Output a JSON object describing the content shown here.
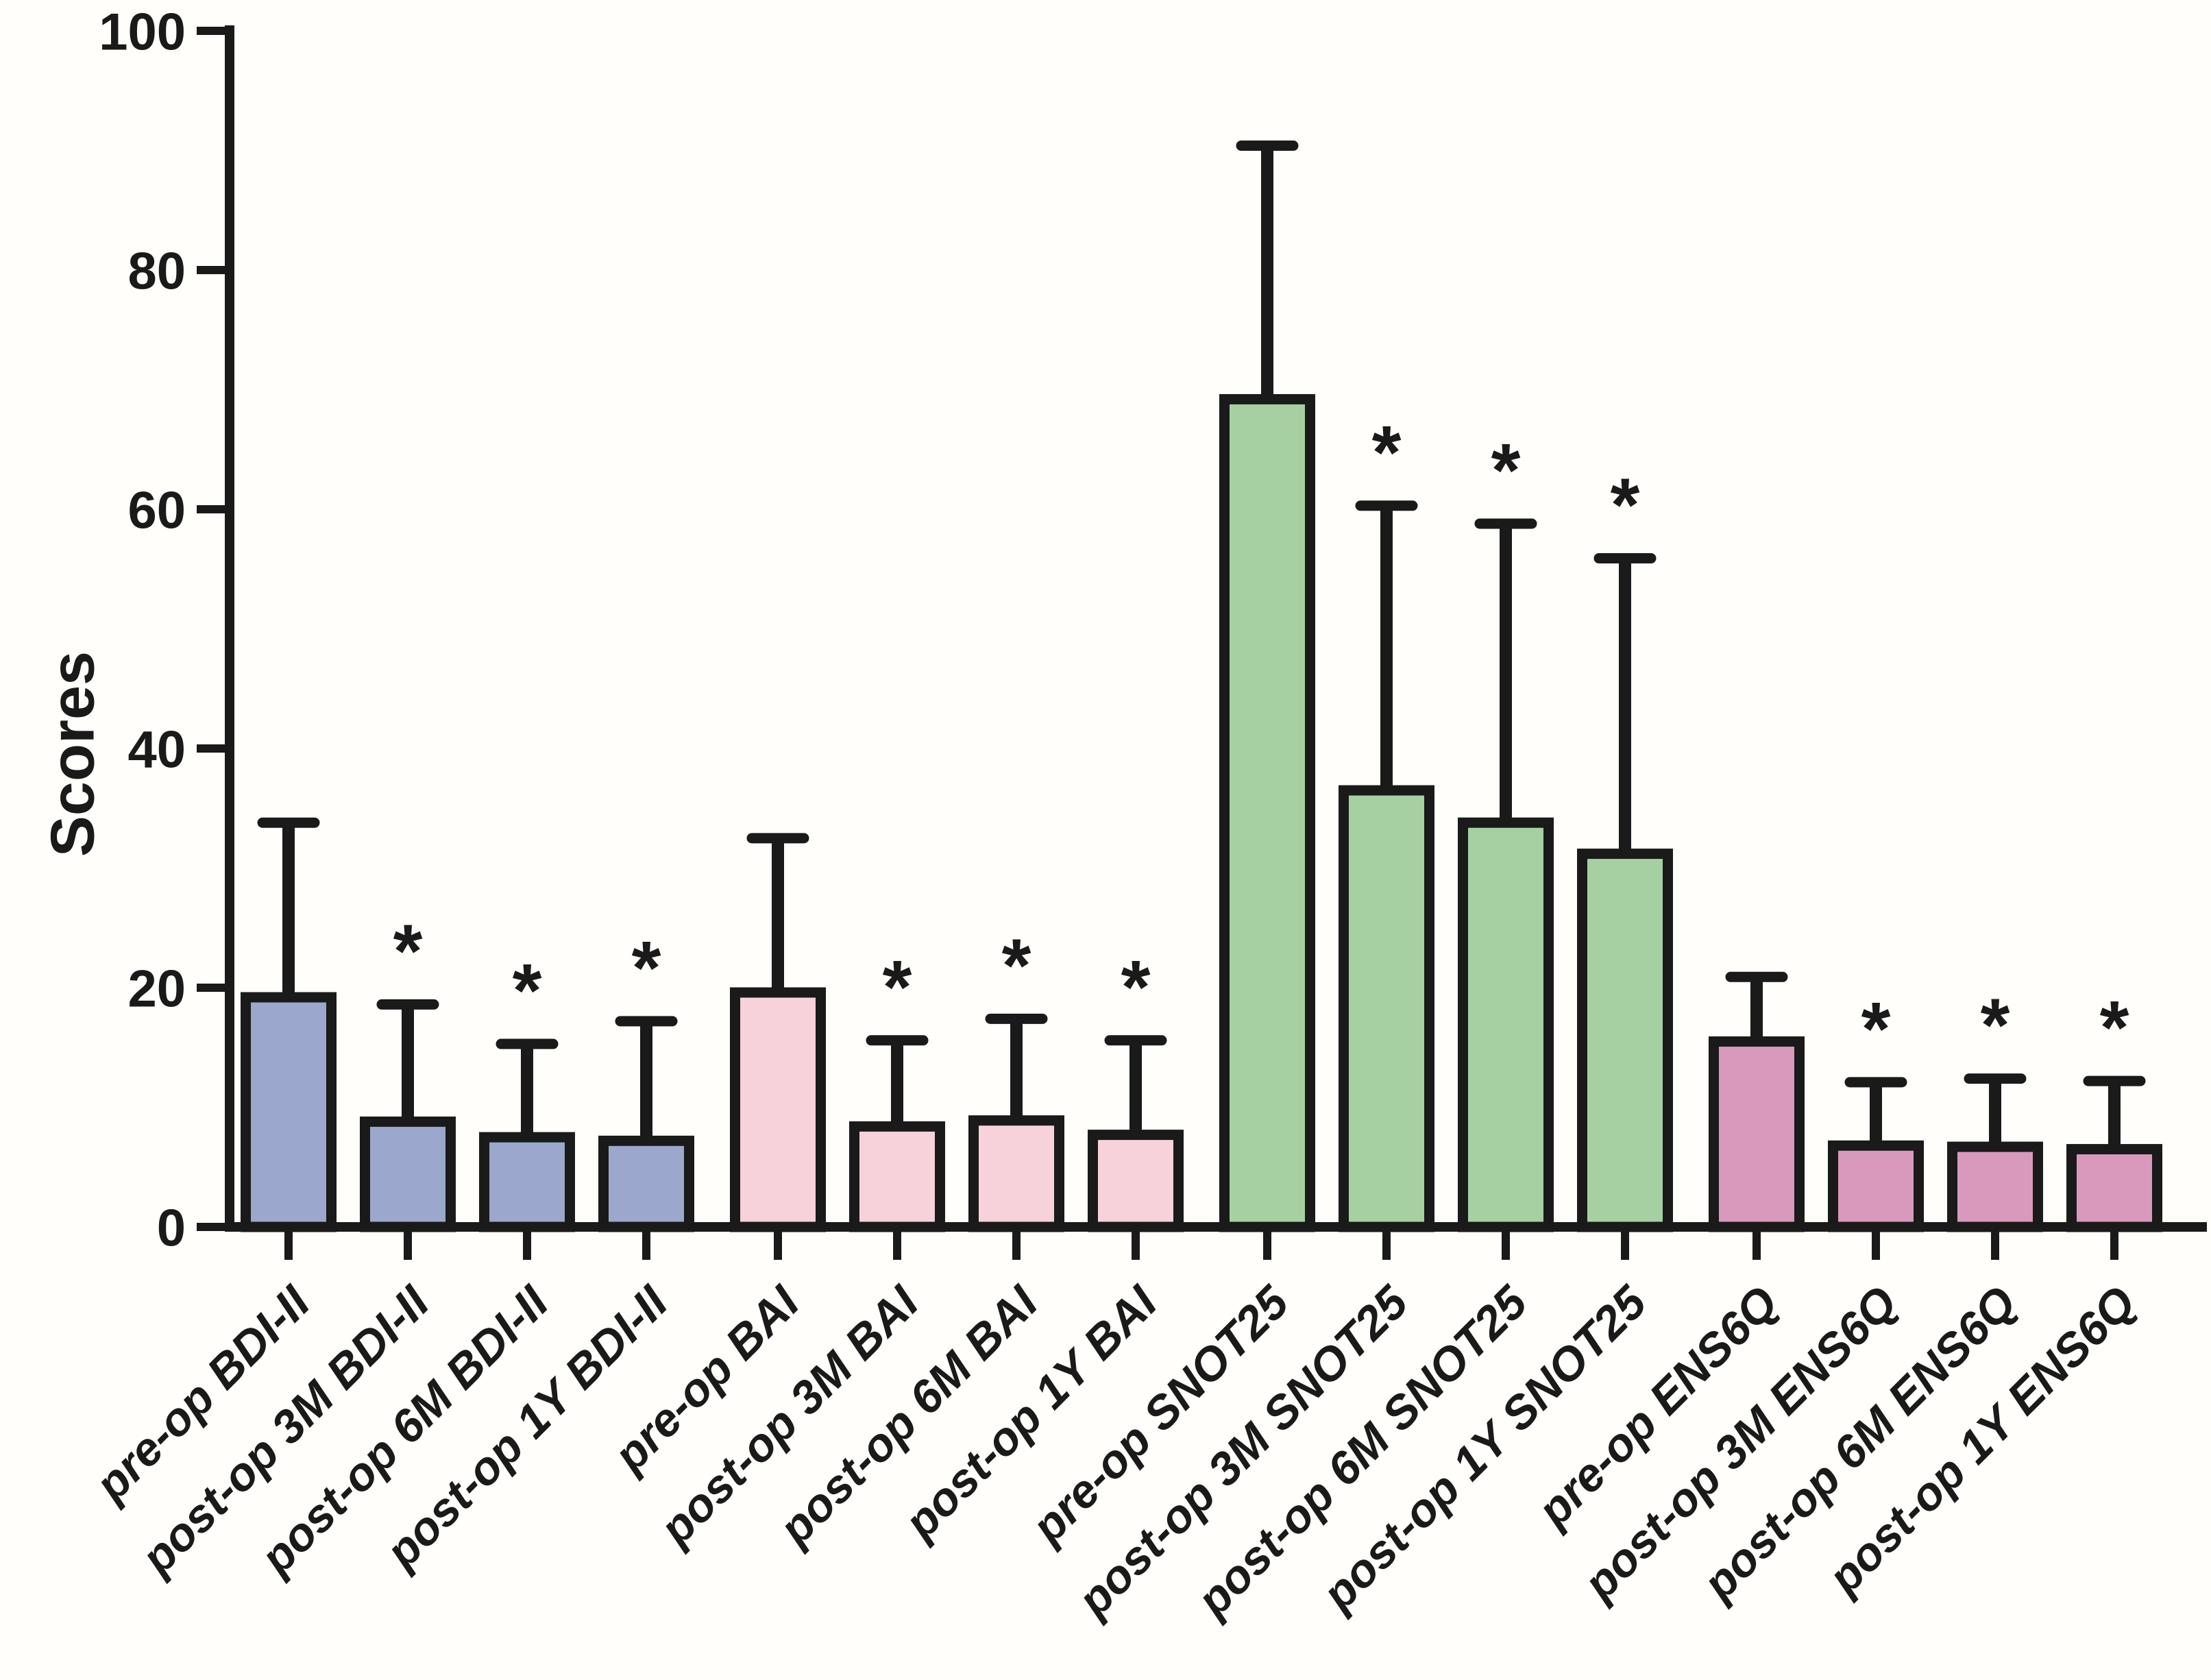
{
  "figure": {
    "background": "#fffefa",
    "ink": "#1a1a1a"
  },
  "chart_data": {
    "type": "bar",
    "title": "",
    "xlabel": "",
    "ylabel": "Scores",
    "ylim": [
      0,
      100
    ],
    "yticks": [
      0,
      20,
      40,
      60,
      80,
      100
    ],
    "grid": false,
    "legend_position": "none",
    "error_bars": "upper SD whisker",
    "significance_marker": "*",
    "groups": [
      {
        "name": "BDI-II",
        "fill": "#9ba7cd",
        "bars": [
          {
            "category": "pre-op BDI-II",
            "value": 19.2,
            "error_top": 33.8,
            "significant": false
          },
          {
            "category": "post-op 3M BDI-II",
            "value": 8.8,
            "error_top": 18.6,
            "significant": true
          },
          {
            "category": "post-op 6M BDI-II",
            "value": 7.5,
            "error_top": 15.3,
            "significant": true
          },
          {
            "category": "post-op 1Y BDI-II",
            "value": 7.2,
            "error_top": 17.2,
            "significant": true
          }
        ]
      },
      {
        "name": "BAI",
        "fill": "#f8d2da",
        "bars": [
          {
            "category": "pre-op BAI",
            "value": 19.6,
            "error_top": 32.5,
            "significant": false
          },
          {
            "category": "post-op 3M BAI",
            "value": 8.4,
            "error_top": 15.6,
            "significant": true
          },
          {
            "category": "post-op 6M BAI",
            "value": 8.9,
            "error_top": 17.4,
            "significant": true
          },
          {
            "category": "post-op 1Y BAI",
            "value": 7.7,
            "error_top": 15.6,
            "significant": true
          }
        ]
      },
      {
        "name": "SNOT25",
        "fill": "#a6d0a2",
        "bars": [
          {
            "category": "pre-op SNOT25",
            "value": 69.2,
            "error_top": 90.4,
            "significant": false
          },
          {
            "category": "post-op 3M SNOT25",
            "value": 36.5,
            "error_top": 60.3,
            "significant": true
          },
          {
            "category": "post-op 6M SNOT25",
            "value": 33.8,
            "error_top": 58.8,
            "significant": true
          },
          {
            "category": "post-op 1Y SNOT25",
            "value": 31.2,
            "error_top": 55.9,
            "significant": true
          }
        ]
      },
      {
        "name": "ENS6Q",
        "fill": "#d999bc",
        "bars": [
          {
            "category": "pre-op ENS6Q",
            "value": 15.5,
            "error_top": 20.9,
            "significant": false
          },
          {
            "category": "post-op 3M ENS6Q",
            "value": 6.8,
            "error_top": 12.1,
            "significant": true
          },
          {
            "category": "post-op 6M ENS6Q",
            "value": 6.7,
            "error_top": 12.4,
            "significant": true
          },
          {
            "category": "post-op 1Y ENS6Q",
            "value": 6.5,
            "error_top": 12.2,
            "significant": true
          }
        ]
      }
    ]
  }
}
